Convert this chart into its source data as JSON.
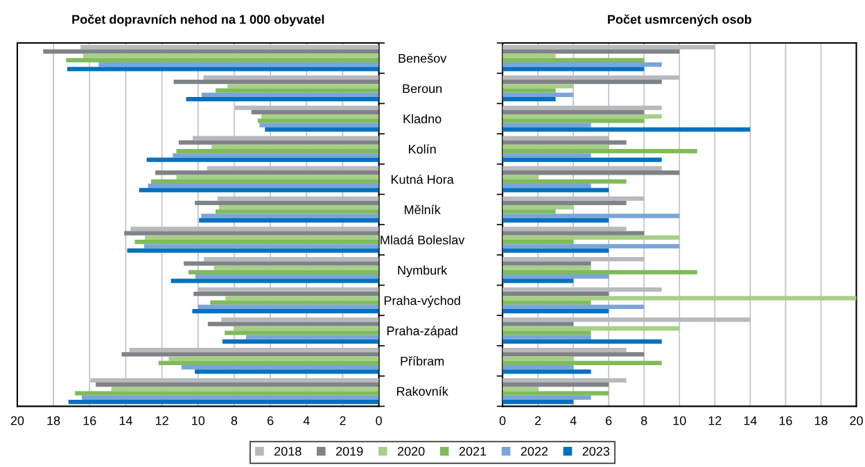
{
  "chart_data": [
    {
      "type": "bar",
      "orientation": "horizontal",
      "title": "Počet dopravních nehod na 1 000 obyvatel",
      "categories": [
        "Benešov",
        "Beroun",
        "Kladno",
        "Kolín",
        "Kutná Hora",
        "Mělník",
        "Mladá Boleslav",
        "Nymburk",
        "Praha-východ",
        "Praha-západ",
        "Příbram",
        "Rakovník"
      ],
      "series": [
        {
          "name": "2018",
          "color": "#b7b9bd",
          "values": [
            16.5,
            9.7,
            7.96,
            10.3,
            9.5,
            8.93,
            13.73,
            9.68,
            10.0,
            8.72,
            13.8,
            15.95
          ]
        },
        {
          "name": "2019",
          "color": "#7f8286",
          "values": [
            18.57,
            11.35,
            7.05,
            11.07,
            12.37,
            10.18,
            14.09,
            10.79,
            10.25,
            9.46,
            14.23,
            15.66
          ]
        },
        {
          "name": "2020",
          "color": "#a6cf88",
          "values": [
            16.36,
            8.37,
            6.5,
            9.25,
            11.2,
            8.84,
            12.94,
            9.12,
            8.49,
            8.0,
            11.63,
            14.8
          ]
        },
        {
          "name": "2021",
          "color": "#7fbb5a",
          "values": [
            17.3,
            9.03,
            6.7,
            11.2,
            12.6,
            9.03,
            13.5,
            10.54,
            9.33,
            8.53,
            12.19,
            16.81
          ]
        },
        {
          "name": "2022",
          "color": "#7aa5d8",
          "values": [
            15.5,
            9.8,
            6.6,
            11.4,
            12.77,
            9.83,
            12.99,
            10.15,
            10.0,
            7.35,
            10.92,
            16.43
          ]
        },
        {
          "name": "2023",
          "color": "#0070c0",
          "values": [
            17.24,
            10.66,
            6.3,
            12.84,
            13.26,
            9.95,
            13.92,
            11.5,
            10.32,
            8.65,
            10.18,
            17.17
          ]
        }
      ],
      "xlim": [
        20,
        0
      ],
      "xticks": [
        0,
        2,
        4,
        6,
        8,
        10,
        12,
        14,
        16,
        18,
        20
      ],
      "grid": "x",
      "legend": "bottom"
    },
    {
      "type": "bar",
      "orientation": "horizontal",
      "title": "Počet usmrcených osob",
      "categories": [
        null,
        null,
        null,
        null,
        null,
        null,
        null,
        null,
        null,
        null,
        null,
        null
      ],
      "series": [
        {
          "name": "2018",
          "color": "#b7b9bd",
          "values": [
            12,
            10,
            9,
            6,
            9,
            8,
            7,
            8,
            9,
            14,
            7,
            7
          ]
        },
        {
          "name": "2019",
          "color": "#7f8286",
          "values": [
            10,
            9,
            8,
            7,
            10,
            7,
            8,
            5,
            6,
            4,
            8,
            6
          ]
        },
        {
          "name": "2020",
          "color": "#a6cf88",
          "values": [
            3,
            4,
            9,
            6,
            2,
            4,
            10,
            5,
            20,
            10,
            4,
            2
          ]
        },
        {
          "name": "2021",
          "color": "#7fbb5a",
          "values": [
            8,
            3,
            8,
            11,
            7,
            3,
            4,
            11,
            5,
            5,
            9,
            6
          ]
        },
        {
          "name": "2022",
          "color": "#7aa5d8",
          "values": [
            9,
            4,
            5,
            5,
            5,
            10,
            10,
            6,
            8,
            5,
            4,
            5
          ]
        },
        {
          "name": "2023",
          "color": "#0070c0",
          "values": [
            8,
            3,
            14,
            9,
            6,
            6,
            6,
            4,
            6,
            9,
            5,
            4
          ]
        }
      ],
      "xlim": [
        0,
        20
      ],
      "xticks": [
        0,
        2,
        4,
        6,
        8,
        10,
        12,
        14,
        16,
        18,
        20
      ],
      "grid": "x"
    }
  ]
}
